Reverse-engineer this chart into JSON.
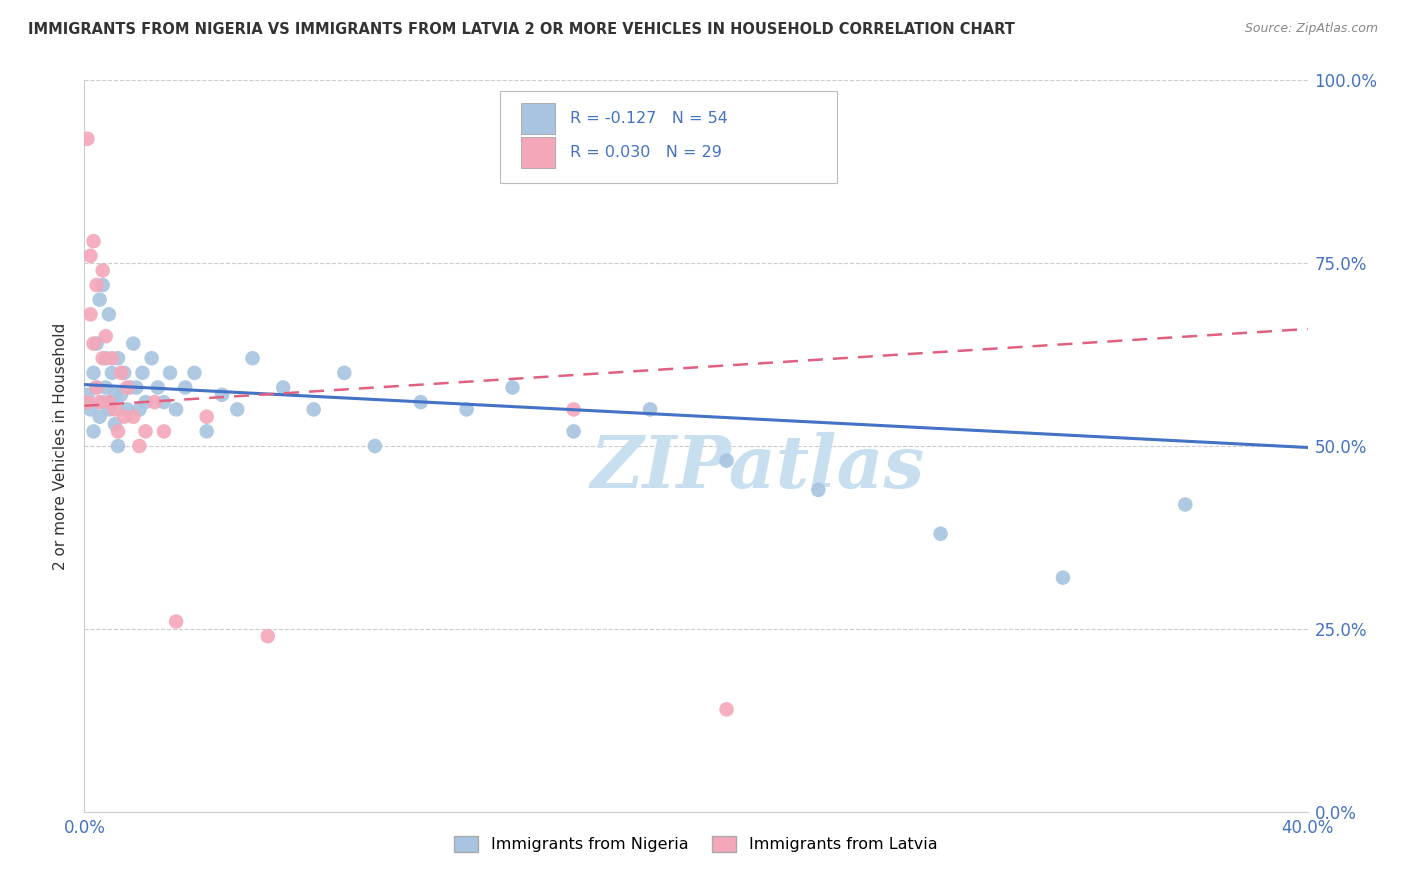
{
  "title": "IMMIGRANTS FROM NIGERIA VS IMMIGRANTS FROM LATVIA 2 OR MORE VEHICLES IN HOUSEHOLD CORRELATION CHART",
  "source": "Source: ZipAtlas.com",
  "ylabel": "2 or more Vehicles in Household",
  "xmin": 0.0,
  "xmax": 0.4,
  "ymin": 0.0,
  "ymax": 1.0,
  "ytick_labels": [
    "0.0%",
    "25.0%",
    "50.0%",
    "75.0%",
    "100.0%"
  ],
  "ytick_vals": [
    0.0,
    0.25,
    0.5,
    0.75,
    1.0
  ],
  "xtick_vals": [
    0.0,
    0.1,
    0.2,
    0.3,
    0.4
  ],
  "xtick_labels": [
    "0.0%",
    "",
    "",
    "",
    "40.0%"
  ],
  "nigeria_R": -0.127,
  "nigeria_N": 54,
  "latvia_R": 0.03,
  "latvia_N": 29,
  "nigeria_color": "#a8c4e0",
  "latvia_color": "#f4a7b9",
  "nigeria_line_color": "#4472c4",
  "latvia_line_color": "#e06080",
  "legend_nigeria": "Immigrants from Nigeria",
  "legend_latvia": "Immigrants from Latvia",
  "nigeria_x": [
    0.001,
    0.002,
    0.003,
    0.003,
    0.004,
    0.004,
    0.005,
    0.005,
    0.006,
    0.006,
    0.007,
    0.007,
    0.008,
    0.008,
    0.009,
    0.009,
    0.01,
    0.01,
    0.011,
    0.011,
    0.012,
    0.013,
    0.014,
    0.015,
    0.016,
    0.017,
    0.018,
    0.019,
    0.02,
    0.022,
    0.024,
    0.026,
    0.028,
    0.03,
    0.033,
    0.036,
    0.04,
    0.045,
    0.05,
    0.055,
    0.065,
    0.075,
    0.085,
    0.095,
    0.11,
    0.125,
    0.14,
    0.16,
    0.185,
    0.21,
    0.24,
    0.28,
    0.32,
    0.36
  ],
  "nigeria_y": [
    0.57,
    0.55,
    0.6,
    0.52,
    0.64,
    0.58,
    0.7,
    0.54,
    0.72,
    0.56,
    0.58,
    0.62,
    0.55,
    0.68,
    0.56,
    0.6,
    0.57,
    0.53,
    0.62,
    0.5,
    0.57,
    0.6,
    0.55,
    0.58,
    0.64,
    0.58,
    0.55,
    0.6,
    0.56,
    0.62,
    0.58,
    0.56,
    0.6,
    0.55,
    0.58,
    0.6,
    0.52,
    0.57,
    0.55,
    0.62,
    0.58,
    0.55,
    0.6,
    0.5,
    0.56,
    0.55,
    0.58,
    0.52,
    0.55,
    0.48,
    0.44,
    0.38,
    0.32,
    0.42
  ],
  "nigeria_line_x0": 0.0,
  "nigeria_line_x1": 0.4,
  "nigeria_line_y0": 0.584,
  "nigeria_line_y1": 0.498,
  "latvia_x": [
    0.001,
    0.001,
    0.002,
    0.002,
    0.003,
    0.003,
    0.004,
    0.004,
    0.005,
    0.006,
    0.006,
    0.007,
    0.008,
    0.009,
    0.01,
    0.011,
    0.012,
    0.013,
    0.014,
    0.016,
    0.018,
    0.02,
    0.023,
    0.026,
    0.03,
    0.04,
    0.06,
    0.16,
    0.21
  ],
  "latvia_y": [
    0.92,
    0.56,
    0.76,
    0.68,
    0.78,
    0.64,
    0.72,
    0.58,
    0.56,
    0.62,
    0.74,
    0.65,
    0.56,
    0.62,
    0.55,
    0.52,
    0.6,
    0.54,
    0.58,
    0.54,
    0.5,
    0.52,
    0.56,
    0.52,
    0.26,
    0.54,
    0.24,
    0.55,
    0.14
  ],
  "latvia_line_x0": 0.0,
  "latvia_line_x1": 0.4,
  "latvia_line_y0": 0.555,
  "latvia_line_y1": 0.66,
  "watermark_text": "ZIPatlas",
  "watermark_color": "#c8dff0",
  "background_color": "#ffffff",
  "grid_color": "#cccccc",
  "tick_color": "#4472c4",
  "title_color": "#333333",
  "source_color": "#888888"
}
